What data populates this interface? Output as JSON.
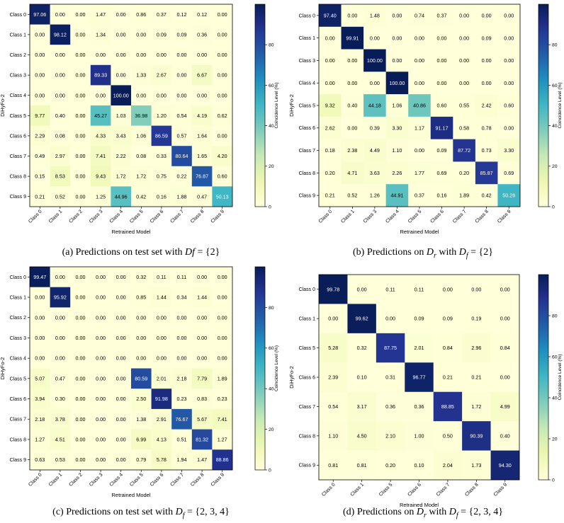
{
  "chart_data": [
    {
      "type": "heatmap",
      "panel": "(a)",
      "caption": "(a) Predictions on test set with Df = {2}",
      "xlabel": "Retrained Model",
      "ylabel": "DiHyFo-2",
      "row_labels": [
        "Class 0",
        "Class 1",
        "Class 2",
        "Class 3",
        "Class 4",
        "Class 5",
        "Class 6",
        "Class 7",
        "Class 8",
        "Class 9"
      ],
      "col_labels": [
        "Class 0",
        "Class 1",
        "Class 2",
        "Class 3",
        "Class 4",
        "Class 5",
        "Class 6",
        "Class 7",
        "Class 8",
        "Class 9"
      ],
      "values": [
        [
          "97.06",
          "0.00",
          "0.00",
          "1.47",
          "0.00",
          "0.86",
          "0.37",
          "0.12",
          "0.12",
          "0.00"
        ],
        [
          "0.00",
          "98.12",
          "0.00",
          "1.34",
          "0.00",
          "0.00",
          "0.09",
          "0.09",
          "0.36",
          "0.00"
        ],
        [
          "0.00",
          "0.00",
          "0.00",
          "0.00",
          "0.00",
          "0.00",
          "0.00",
          "0.00",
          "0.00",
          "0.00"
        ],
        [
          "0.00",
          "0.00",
          "0.00",
          "89.33",
          "0.00",
          "1.33",
          "2.67",
          "0.00",
          "6.67",
          "0.00"
        ],
        [
          "0.00",
          "0.00",
          "0.00",
          "0.00",
          "100.00",
          "0.00",
          "0.00",
          "0.00",
          "0.00",
          "0.00"
        ],
        [
          "9.77",
          "0.40",
          "0.00",
          "45.27",
          "1.03",
          "36.98",
          "1.20",
          "0.54",
          "4.19",
          "0.62"
        ],
        [
          "2.29",
          "0.08",
          "0.00",
          "4.33",
          "3.43",
          "1.06",
          "86.59",
          "0.57",
          "1.64",
          "0.00"
        ],
        [
          "0.49",
          "2.97",
          "0.00",
          "7.41",
          "2.22",
          "0.08",
          "0.33",
          "80.64",
          "1.65",
          "4.20"
        ],
        [
          "0.15",
          "8.53",
          "0.00",
          "9.43",
          "1.72",
          "1.72",
          "0.75",
          "0.22",
          "76.87",
          "0.60"
        ],
        [
          "0.21",
          "0.52",
          "0.00",
          "1.25",
          "44.96",
          "0.42",
          "0.16",
          "1.88",
          "0.47",
          "50.13"
        ]
      ],
      "colorbar": {
        "label": "Coincidence Level (%)",
        "ticks": [
          "0",
          "20",
          "40",
          "60",
          "80"
        ],
        "range": [
          0,
          100
        ]
      }
    },
    {
      "type": "heatmap",
      "panel": "(b)",
      "caption": "(b) Predictions on Dr with Df = {2}",
      "xlabel": "Retrained Model",
      "ylabel": "DiHyFo-2",
      "row_labels": [
        "Class 0",
        "Class 1",
        "Class 3",
        "Class 4",
        "Class 5",
        "Class 6",
        "Class 7",
        "Class 8",
        "Class 9"
      ],
      "col_labels": [
        "Class 0",
        "Class 1",
        "Class 3",
        "Class 4",
        "Class 5",
        "Class 6",
        "Class 7",
        "Class 8",
        "Class 9"
      ],
      "values": [
        [
          "97.40",
          "0.00",
          "1.48",
          "0.00",
          "0.74",
          "0.37",
          "0.00",
          "0.00",
          "0.00"
        ],
        [
          "0.00",
          "99.91",
          "0.00",
          "0.00",
          "0.00",
          "0.00",
          "0.00",
          "0.09",
          "0.00"
        ],
        [
          "0.00",
          "0.00",
          "100.00",
          "0.00",
          "0.00",
          "0.00",
          "0.00",
          "0.00",
          "0.00"
        ],
        [
          "0.00",
          "0.00",
          "0.00",
          "100.00",
          "0.00",
          "0.00",
          "0.00",
          "0.00",
          "0.00"
        ],
        [
          "9.32",
          "0.40",
          "44.18",
          "1.06",
          "40.86",
          "0.60",
          "0.55",
          "2.42",
          "0.60"
        ],
        [
          "2.62",
          "0.00",
          "0.39",
          "3.30",
          "1.17",
          "91.17",
          "0.58",
          "0.78",
          "0.00"
        ],
        [
          "0.18",
          "2.38",
          "4.49",
          "1.10",
          "0.00",
          "0.09",
          "87.72",
          "0.73",
          "3.30"
        ],
        [
          "0.20",
          "4.71",
          "3.63",
          "2.26",
          "1.77",
          "0.69",
          "0.20",
          "85.87",
          "0.69"
        ],
        [
          "0.21",
          "0.52",
          "1.26",
          "44.91",
          "0.37",
          "0.16",
          "1.89",
          "0.42",
          "50.26"
        ]
      ],
      "colorbar": {
        "label": "Coincidence Level (%)",
        "ticks": [
          "0",
          "20",
          "40",
          "60",
          "80"
        ],
        "range": [
          0,
          100
        ]
      }
    },
    {
      "type": "heatmap",
      "panel": "(c)",
      "caption": "(c) Predictions on test set with Df = {2, 3, 4}",
      "xlabel": "Retrained Model",
      "ylabel": "DiHyFo-2",
      "row_labels": [
        "Class 0",
        "Class 1",
        "Class 2",
        "Class 3",
        "Class 4",
        "Class 5",
        "Class 6",
        "Class 7",
        "Class 8",
        "Class 9"
      ],
      "col_labels": [
        "Class 0",
        "Class 1",
        "Class 2",
        "Class 3",
        "Class 4",
        "Class 5",
        "Class 6",
        "Class 7",
        "Class 8",
        "Class 9"
      ],
      "values": [
        [
          "99.47",
          "0.00",
          "0.00",
          "0.00",
          "0.00",
          "0.32",
          "0.11",
          "0.11",
          "0.00",
          "0.00"
        ],
        [
          "0.00",
          "95.92",
          "0.00",
          "0.00",
          "0.00",
          "0.85",
          "1.44",
          "0.34",
          "1.44",
          "0.00"
        ],
        [
          "0.00",
          "0.00",
          "0.00",
          "0.00",
          "0.00",
          "0.00",
          "0.00",
          "0.00",
          "0.00",
          "0.00"
        ],
        [
          "0.00",
          "0.00",
          "0.00",
          "0.00",
          "0.00",
          "0.00",
          "0.00",
          "0.00",
          "0.00",
          "0.00"
        ],
        [
          "0.00",
          "0.00",
          "0.00",
          "0.00",
          "0.00",
          "0.00",
          "0.00",
          "0.00",
          "0.00",
          "0.00"
        ],
        [
          "5.07",
          "0.47",
          "0.00",
          "0.00",
          "0.00",
          "80.59",
          "2.01",
          "2.18",
          "7.79",
          "1.89"
        ],
        [
          "3.94",
          "0.30",
          "0.00",
          "0.00",
          "0.00",
          "2.50",
          "91.98",
          "0.23",
          "0.83",
          "0.23"
        ],
        [
          "2.18",
          "3.78",
          "0.00",
          "0.00",
          "0.00",
          "1.38",
          "2.91",
          "76.67",
          "5.67",
          "7.41"
        ],
        [
          "1.27",
          "4.51",
          "0.00",
          "0.00",
          "0.00",
          "6.99",
          "4.13",
          "0.51",
          "81.32",
          "1.27"
        ],
        [
          "0.63",
          "0.53",
          "0.00",
          "0.00",
          "0.00",
          "0.79",
          "5.78",
          "1.94",
          "1.47",
          "88.86"
        ]
      ],
      "colorbar": {
        "label": "Coincidence Level (%)",
        "ticks": [
          "0",
          "20",
          "40",
          "60",
          "80"
        ],
        "range": [
          0,
          100
        ]
      }
    },
    {
      "type": "heatmap",
      "panel": "(d)",
      "caption": "(d) Predictions on Dr with Df = {2, 3, 4}",
      "xlabel": "Retrained Model",
      "ylabel": "DiHyFo-2",
      "row_labels": [
        "Class 0",
        "Class 1",
        "Class 5",
        "Class 6",
        "Class 7",
        "Class 8",
        "Class 9"
      ],
      "col_labels": [
        "Class 0",
        "Class 1",
        "Class 5",
        "Class 6",
        "Class 7",
        "Class 8",
        "Class 9"
      ],
      "values": [
        [
          "99.78",
          "0.00",
          "0.11",
          "0.11",
          "0.00",
          "0.00",
          "0.00"
        ],
        [
          "0.00",
          "99.62",
          "0.00",
          "0.09",
          "0.09",
          "0.19",
          "0.00"
        ],
        [
          "5.28",
          "0.32",
          "87.75",
          "2.01",
          "0.84",
          "2.96",
          "0.84"
        ],
        [
          "2.39",
          "0.10",
          "0.31",
          "96.77",
          "0.21",
          "0.21",
          "0.00"
        ],
        [
          "0.54",
          "3.17",
          "0.36",
          "0.36",
          "88.85",
          "1.72",
          "4.99"
        ],
        [
          "1.10",
          "4.50",
          "2.10",
          "1.00",
          "0.50",
          "90.39",
          "0.40"
        ],
        [
          "0.81",
          "0.81",
          "0.20",
          "0.10",
          "2.04",
          "1.73",
          "94.30"
        ]
      ],
      "colorbar": {
        "label": "Coincidence Level (%)",
        "ticks": [
          "0",
          "20",
          "40",
          "60",
          "80"
        ],
        "range": [
          0,
          100
        ]
      }
    }
  ]
}
